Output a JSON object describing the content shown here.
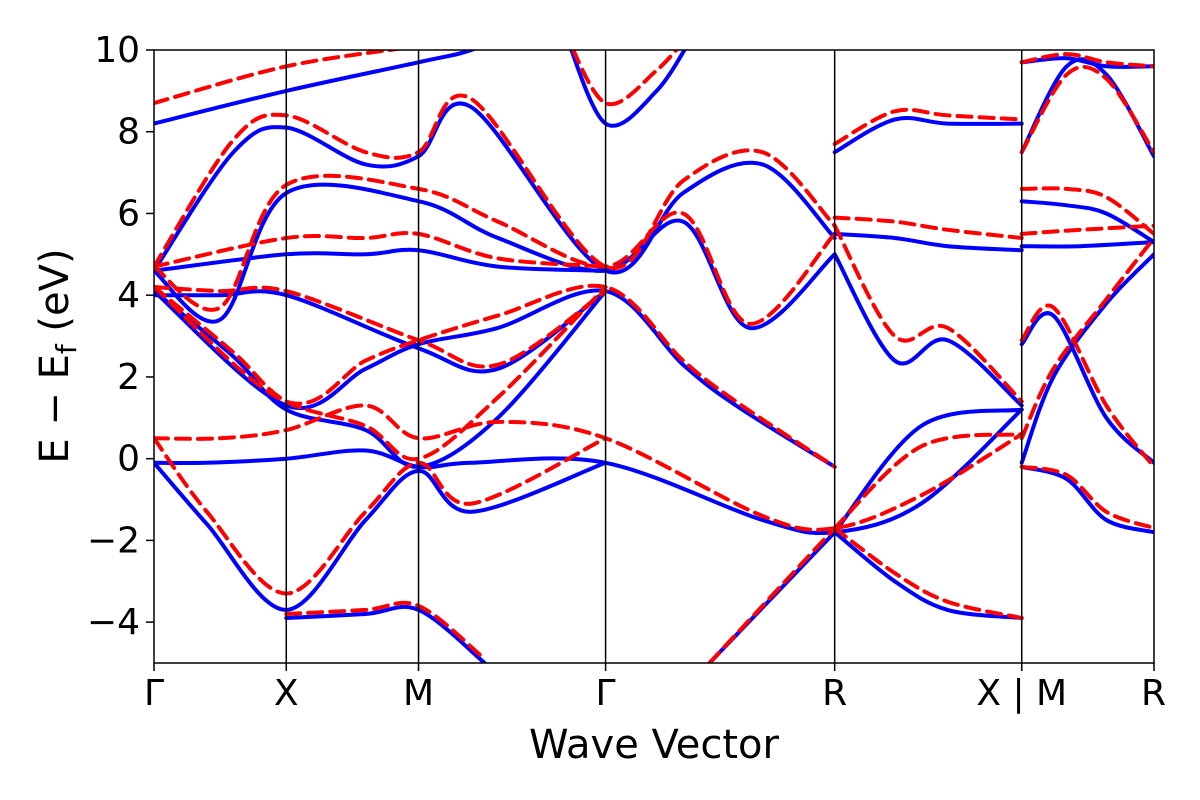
{
  "chart_data": {
    "type": "line",
    "xlabel": "Wave Vector",
    "ylabel_main": "E − E",
    "ylabel_sub": "f",
    "ylabel_unit": "(eV)",
    "ylim": [
      -5,
      10
    ],
    "yticks": [
      -4,
      -2,
      0,
      2,
      4,
      6,
      8,
      10
    ],
    "ytick_labels": [
      "−4",
      "−2",
      "0",
      "2",
      "4",
      "6",
      "8",
      "10"
    ],
    "kpath_labels": [
      "Γ",
      "X",
      "M",
      "Γ",
      "R",
      "X | M",
      "R"
    ],
    "kpath_positions": [
      0,
      0.5,
      1.0,
      1.7071,
      2.5731,
      3.2802,
      3.7802
    ],
    "xlim": [
      0,
      3.7802
    ],
    "grid": false,
    "series_styles": [
      {
        "color": "#0000ff",
        "dash": "none"
      },
      {
        "color": "#ff0000",
        "dash": "dashed"
      }
    ],
    "series": [
      {
        "bands": [
          {
            "x": [
              0,
              0.2,
              0.5,
              0.8,
              1.0,
              1.2,
              1.7071,
              2.3,
              2.5731,
              2.9,
              3.2802
            ],
            "y": [
              -0.1,
              -0.1,
              0.0,
              0.2,
              -0.2,
              -0.1,
              -0.1,
              -1.5,
              -1.8,
              -1.1,
              1.2
            ]
          },
          {
            "x": [
              0,
              0.2,
              0.5,
              0.8,
              1.0,
              1.2,
              1.7071
            ],
            "y": [
              -0.1,
              -1.6,
              -3.7,
              -1.5,
              -0.3,
              -1.3,
              -0.1
            ]
          },
          {
            "x": [
              0,
              0.3,
              0.5,
              0.8,
              1.0,
              1.3,
              1.7071
            ],
            "y": [
              4.1,
              2.5,
              1.2,
              0.7,
              -0.2,
              1.0,
              4.1
            ]
          },
          {
            "x": [
              0,
              0.5,
              0.8,
              1.0,
              1.3,
              1.7071,
              2.0,
              2.2,
              2.5731
            ],
            "y": [
              4.1,
              1.3,
              2.2,
              2.8,
              3.2,
              4.1,
              2.3,
              1.3,
              -0.2
            ]
          },
          {
            "x": [
              0,
              0.25,
              0.5,
              1.0,
              1.3,
              1.7071
            ],
            "y": [
              4.0,
              4.0,
              4.0,
              2.7,
              2.2,
              4.1
            ]
          },
          {
            "x": [
              0,
              0.5,
              0.8,
              1.0,
              1.3,
              1.7071
            ],
            "y": [
              4.6,
              5.0,
              5.0,
              5.1,
              4.7,
              4.6
            ]
          },
          {
            "x": [
              0,
              0.25,
              0.5,
              1.0,
              1.3,
              1.7071,
              2.0,
              2.25,
              2.5731
            ],
            "y": [
              4.6,
              3.4,
              6.5,
              6.3,
              5.4,
              4.6,
              5.8,
              3.2,
              5.0
            ]
          },
          {
            "x": [
              0,
              0.3,
              0.5,
              0.8,
              1.0,
              1.2,
              1.7071,
              2.0,
              2.3,
              2.5731
            ],
            "y": [
              4.6,
              7.5,
              8.1,
              7.2,
              7.4,
              8.6,
              4.6,
              6.5,
              7.2,
              5.4
            ]
          },
          {
            "x": [
              0,
              0.5,
              1.0,
              1.2,
              1.35
            ],
            "y": [
              8.2,
              9.0,
              9.7,
              10.0,
              10.5
            ]
          },
          {
            "x": [
              1.55,
              1.7071,
              1.9,
              2.05
            ],
            "y": [
              10.5,
              8.2,
              9.0,
              10.5
            ]
          },
          {
            "x": [
              2.5731,
              2.8,
              3.0,
              3.2802
            ],
            "y": [
              -1.8,
              -3.0,
              -3.7,
              -3.9
            ]
          },
          {
            "x": [
              0.5,
              0.8,
              1.0,
              1.25
            ],
            "y": [
              -3.9,
              -3.8,
              -3.7,
              -5.0
            ]
          },
          {
            "x": [
              2.1,
              2.5731
            ],
            "y": [
              -5.0,
              -1.8
            ]
          },
          {
            "x": [
              2.5731,
              2.8,
              3.0,
              3.2802
            ],
            "y": [
              5.0,
              2.4,
              2.9,
              1.3
            ]
          },
          {
            "x": [
              2.5731,
              2.8,
              3.0,
              3.2802
            ],
            "y": [
              5.5,
              5.4,
              5.2,
              5.1
            ]
          },
          {
            "x": [
              2.5731,
              2.8,
              3.0,
              3.2802
            ],
            "y": [
              7.5,
              8.3,
              8.2,
              8.2
            ]
          },
          {
            "x": [
              2.5731,
              2.9,
              3.2802
            ],
            "y": [
              -1.8,
              0.8,
              1.2
            ]
          },
          {
            "x": [
              3.2802,
              3.45,
              3.6,
              3.7802
            ],
            "y": [
              -0.2,
              -0.5,
              -1.5,
              -1.8
            ]
          },
          {
            "x": [
              3.2802,
              3.4,
              3.6,
              3.7802
            ],
            "y": [
              -0.1,
              2.0,
              3.8,
              5.0
            ]
          },
          {
            "x": [
              3.2802,
              3.4,
              3.6,
              3.7802
            ],
            "y": [
              2.8,
              3.5,
              1.0,
              -0.1
            ]
          },
          {
            "x": [
              3.2802,
              3.45,
              3.6,
              3.7802
            ],
            "y": [
              6.3,
              6.2,
              6.0,
              5.3
            ]
          },
          {
            "x": [
              3.2802,
              3.5,
              3.7802
            ],
            "y": [
              5.2,
              5.2,
              5.3
            ]
          },
          {
            "x": [
              3.2802,
              3.45,
              3.6,
              3.7802
            ],
            "y": [
              9.7,
              9.8,
              9.6,
              9.6
            ]
          },
          {
            "x": [
              3.2802,
              3.45,
              3.6,
              3.7802
            ],
            "y": [
              7.5,
              9.6,
              9.4,
              7.4
            ]
          }
        ]
      },
      {
        "bands": [
          {
            "x": [
              0,
              0.25,
              0.5,
              0.8,
              1.0,
              1.3,
              1.7071,
              2.3,
              2.5731,
              2.9,
              3.2802
            ],
            "y": [
              0.5,
              0.5,
              0.7,
              1.3,
              0.5,
              0.9,
              0.5,
              -1.4,
              -1.7,
              -0.9,
              0.6
            ]
          },
          {
            "x": [
              0,
              0.2,
              0.5,
              0.8,
              1.0,
              1.2,
              1.7071
            ],
            "y": [
              0.5,
              -1.3,
              -3.3,
              -1.3,
              -0.1,
              -1.1,
              0.5
            ]
          },
          {
            "x": [
              0,
              0.3,
              0.5,
              0.8,
              1.0,
              1.3,
              1.7071
            ],
            "y": [
              4.2,
              2.6,
              1.4,
              0.8,
              0.0,
              1.5,
              4.2
            ]
          },
          {
            "x": [
              0,
              0.5,
              0.8,
              1.0,
              1.3,
              1.7071,
              2.0,
              2.2,
              2.5731
            ],
            "y": [
              4.2,
              1.4,
              2.4,
              2.9,
              3.5,
              4.2,
              2.4,
              1.4,
              -0.2
            ]
          },
          {
            "x": [
              0,
              0.25,
              0.5,
              1.0,
              1.3,
              1.7071
            ],
            "y": [
              4.2,
              4.1,
              4.1,
              2.9,
              2.3,
              4.1
            ]
          },
          {
            "x": [
              0,
              0.5,
              0.8,
              1.0,
              1.3,
              1.7071
            ],
            "y": [
              4.7,
              5.4,
              5.4,
              5.5,
              4.9,
              4.7
            ]
          },
          {
            "x": [
              0,
              0.25,
              0.5,
              1.0,
              1.3,
              1.7071,
              2.0,
              2.25,
              2.5731
            ],
            "y": [
              4.7,
              3.7,
              6.7,
              6.6,
              5.8,
              4.7,
              6.0,
              3.3,
              5.5
            ]
          },
          {
            "x": [
              0,
              0.3,
              0.5,
              0.8,
              1.0,
              1.2,
              1.7071,
              2.0,
              2.3,
              2.5731
            ],
            "y": [
              4.7,
              7.8,
              8.4,
              7.5,
              7.5,
              8.8,
              4.7,
              6.8,
              7.5,
              5.7
            ]
          },
          {
            "x": [
              0,
              0.5,
              1.0,
              1.2,
              1.35
            ],
            "y": [
              8.7,
              9.6,
              10.1,
              10.3,
              10.6
            ]
          },
          {
            "x": [
              1.55,
              1.7071,
              1.9,
              2.05
            ],
            "y": [
              10.5,
              8.7,
              9.5,
              10.6
            ]
          },
          {
            "x": [
              2.5731,
              2.8,
              3.0,
              3.2802
            ],
            "y": [
              -1.7,
              -2.8,
              -3.5,
              -3.9
            ]
          },
          {
            "x": [
              0.5,
              0.8,
              1.0,
              1.25
            ],
            "y": [
              -3.8,
              -3.7,
              -3.6,
              -4.9
            ]
          },
          {
            "x": [
              2.1,
              2.5731
            ],
            "y": [
              -5.0,
              -1.7
            ]
          },
          {
            "x": [
              2.5731,
              2.8,
              3.0,
              3.2802
            ],
            "y": [
              5.7,
              3.0,
              3.2,
              1.4
            ]
          },
          {
            "x": [
              2.5731,
              2.8,
              3.0,
              3.2802
            ],
            "y": [
              5.9,
              5.8,
              5.6,
              5.4
            ]
          },
          {
            "x": [
              2.5731,
              2.8,
              3.0,
              3.2802
            ],
            "y": [
              7.7,
              8.5,
              8.4,
              8.3
            ]
          },
          {
            "x": [
              2.5731,
              2.9,
              3.2802
            ],
            "y": [
              -1.7,
              0.3,
              0.6
            ]
          },
          {
            "x": [
              3.2802,
              3.45,
              3.6,
              3.7802
            ],
            "y": [
              -0.2,
              -0.4,
              -1.3,
              -1.7
            ]
          },
          {
            "x": [
              3.2802,
              3.4,
              3.6,
              3.7802
            ],
            "y": [
              0.5,
              2.2,
              3.9,
              5.4
            ]
          },
          {
            "x": [
              3.2802,
              3.4,
              3.6,
              3.7802
            ],
            "y": [
              2.9,
              3.7,
              1.3,
              -0.2
            ]
          },
          {
            "x": [
              3.2802,
              3.45,
              3.6,
              3.7802
            ],
            "y": [
              6.6,
              6.6,
              6.4,
              5.5
            ]
          },
          {
            "x": [
              3.2802,
              3.5,
              3.7802
            ],
            "y": [
              5.5,
              5.6,
              5.7
            ]
          },
          {
            "x": [
              3.2802,
              3.45,
              3.6,
              3.7802
            ],
            "y": [
              9.7,
              9.9,
              9.7,
              9.6
            ]
          },
          {
            "x": [
              3.2802,
              3.45,
              3.6,
              3.7802
            ],
            "y": [
              7.5,
              9.4,
              9.3,
              7.5
            ]
          }
        ]
      }
    ]
  }
}
